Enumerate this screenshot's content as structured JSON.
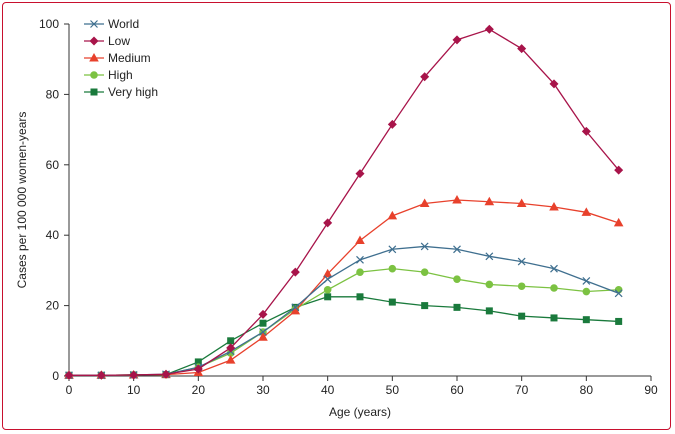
{
  "chart_data": {
    "type": "line",
    "xlabel": "Age (years)",
    "ylabel": "Cases per 100 000 women-years",
    "xlim": [
      0,
      90
    ],
    "ylim": [
      0,
      100
    ],
    "xticks": [
      0,
      10,
      20,
      30,
      40,
      50,
      60,
      70,
      80,
      90
    ],
    "yticks": [
      0,
      20,
      40,
      60,
      80,
      100
    ],
    "legend_position": "top-left",
    "grid": false,
    "x": [
      0,
      5,
      10,
      15,
      20,
      25,
      30,
      35,
      40,
      45,
      50,
      55,
      60,
      65,
      70,
      75,
      80,
      85
    ],
    "series": [
      {
        "name": "World",
        "color": "#3f6f8f",
        "marker": "x",
        "values": [
          0.2,
          0.2,
          0.3,
          0.5,
          2.5,
          7.0,
          12.5,
          19.5,
          27.5,
          33.0,
          36.0,
          36.8,
          36.0,
          34.0,
          32.5,
          30.5,
          27.0,
          23.5
        ]
      },
      {
        "name": "Low",
        "color": "#a8144a",
        "marker": "diamond",
        "values": [
          0.2,
          0.2,
          0.3,
          0.5,
          2.0,
          8.0,
          17.5,
          29.5,
          43.5,
          57.5,
          71.5,
          85.0,
          95.5,
          98.5,
          93.0,
          83.0,
          69.5,
          58.5
        ]
      },
      {
        "name": "Medium",
        "color": "#e8412c",
        "marker": "triangle",
        "values": [
          0.2,
          0.2,
          0.3,
          0.4,
          1.0,
          4.5,
          11.0,
          18.5,
          29.0,
          38.5,
          45.5,
          49.0,
          50.0,
          49.5,
          49.0,
          48.0,
          46.5,
          43.5
        ]
      },
      {
        "name": "High",
        "color": "#7cc242",
        "marker": "circle",
        "values": [
          0.2,
          0.2,
          0.3,
          0.4,
          2.5,
          6.5,
          12.5,
          19.0,
          24.5,
          29.5,
          30.5,
          29.5,
          27.5,
          26.0,
          25.5,
          25.0,
          24.0,
          24.5
        ]
      },
      {
        "name": "Very high",
        "color": "#1a7a3c",
        "marker": "square",
        "values": [
          0.2,
          0.2,
          0.3,
          0.4,
          4.0,
          10.0,
          15.0,
          19.5,
          22.5,
          22.5,
          21.0,
          20.0,
          19.5,
          18.5,
          17.0,
          16.5,
          16.0,
          15.5
        ]
      }
    ]
  }
}
